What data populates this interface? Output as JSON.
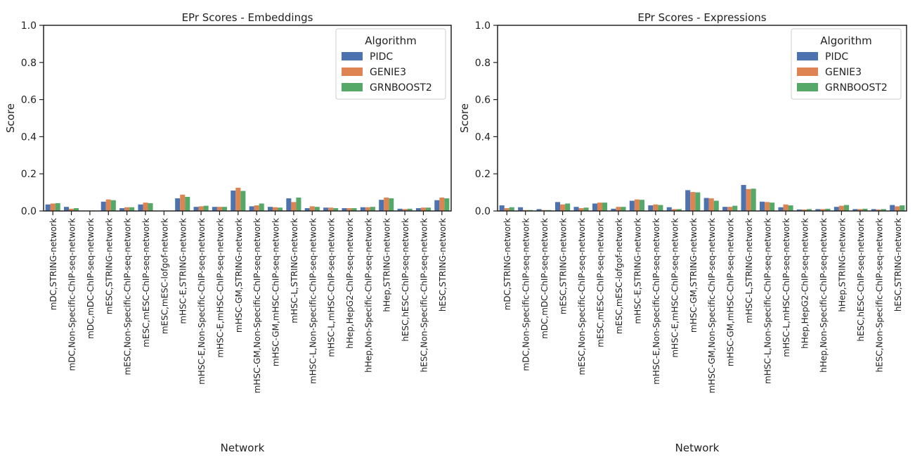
{
  "colors": {
    "PIDC": "#4C72B0",
    "GENIE3": "#DD8452",
    "GRNBOOST2": "#55A868"
  },
  "chart_data": [
    {
      "type": "bar",
      "title": "EPr Scores - Embeddings",
      "xlabel": "Network",
      "ylabel": "Score",
      "ylim": [
        0,
        1.0
      ],
      "yticks": [
        "0.0",
        "0.2",
        "0.4",
        "0.6",
        "0.8",
        "1.0"
      ],
      "legend": {
        "title": "Algorithm",
        "position": "top-right"
      },
      "grid": false,
      "categories": [
        "mDC,STRING-network",
        "mDC,Non-Specific-ChIP-seq-network",
        "mDC,mDC-ChIP-seq-network",
        "mESC,STRING-network",
        "mESC,Non-Specific-ChIP-seq-network",
        "mESC,mESC-ChIP-seq-network",
        "mESC,mESC-lofgof-network",
        "mHSC-E,STRING-network",
        "mHSC-E,Non-Specific-ChIP-seq-network",
        "mHSC-E,mHSC-ChIP-seq-network",
        "mHSC-GM,STRING-network",
        "mHSC-GM,Non-Specific-ChIP-seq-network",
        "mHSC-GM,mHSC-ChIP-seq-network",
        "mHSC-L,STRING-network",
        "mHSC-L,Non-Specific-ChIP-seq-network",
        "mHSC-L,mHSC-ChIP-seq-network",
        "hHep,HepG2-ChIP-seq-network",
        "hHep,Non-Specific-ChIP-seq-network",
        "hHep,STRING-network",
        "hESC,hESC-ChIP-seq-network",
        "hESC,Non-Specific-ChIP-seq-network",
        "hESC,STRING-network"
      ],
      "series": [
        {
          "name": "PIDC",
          "values": [
            0.035,
            0.022,
            0.0,
            0.05,
            0.015,
            0.035,
            0.0,
            0.068,
            0.022,
            0.022,
            0.11,
            0.025,
            0.022,
            0.068,
            0.015,
            0.018,
            0.015,
            0.02,
            0.06,
            0.012,
            0.015,
            0.058
          ]
        },
        {
          "name": "GENIE3",
          "values": [
            0.04,
            0.012,
            0.0,
            0.062,
            0.02,
            0.045,
            0.0,
            0.088,
            0.025,
            0.022,
            0.125,
            0.03,
            0.02,
            0.048,
            0.025,
            0.018,
            0.015,
            0.02,
            0.072,
            0.01,
            0.018,
            0.072
          ]
        },
        {
          "name": "GRNBOOST2",
          "values": [
            0.042,
            0.015,
            0.0,
            0.058,
            0.02,
            0.042,
            0.0,
            0.076,
            0.028,
            0.022,
            0.108,
            0.04,
            0.018,
            0.072,
            0.022,
            0.015,
            0.015,
            0.022,
            0.068,
            0.012,
            0.018,
            0.068
          ]
        }
      ]
    },
    {
      "type": "bar",
      "title": "EPr Scores - Expressions",
      "xlabel": "Network",
      "ylabel": "Score",
      "ylim": [
        0,
        1.0
      ],
      "yticks": [
        "0.0",
        "0.2",
        "0.4",
        "0.6",
        "0.8",
        "1.0"
      ],
      "legend": {
        "title": "Algorithm",
        "position": "top-right"
      },
      "grid": false,
      "categories": [
        "mDC,STRING-network",
        "mDC,Non-Specific-ChIP-seq-network",
        "mDC,mDC-ChIP-seq-network",
        "mESC,STRING-network",
        "mESC,Non-Specific-ChIP-seq-network",
        "mESC,mESC-ChIP-seq-network",
        "mESC,mESC-lofgof-network",
        "mHSC-E,STRING-network",
        "mHSC-E,Non-Specific-ChIP-seq-network",
        "mHSC-E,mHSC-ChIP-seq-network",
        "mHSC-GM,STRING-network",
        "mHSC-GM,Non-Specific-ChIP-seq-network",
        "mHSC-GM,mHSC-ChIP-seq-network",
        "mHSC-L,STRING-network",
        "mHSC-L,Non-Specific-ChIP-seq-network",
        "mHSC-L,mHSC-ChIP-seq-network",
        "hHep,HepG2-ChIP-seq-network",
        "hHep,Non-Specific-ChIP-seq-network",
        "hHep,STRING-network",
        "hESC,hESC-ChIP-seq-network",
        "hESC,Non-Specific-ChIP-seq-network",
        "hESC,STRING-network"
      ],
      "series": [
        {
          "name": "PIDC",
          "values": [
            0.03,
            0.02,
            0.01,
            0.048,
            0.022,
            0.04,
            0.012,
            0.055,
            0.03,
            0.02,
            0.112,
            0.07,
            0.022,
            0.14,
            0.05,
            0.02,
            0.008,
            0.01,
            0.022,
            0.01,
            0.01,
            0.032
          ]
        },
        {
          "name": "GENIE3",
          "values": [
            0.015,
            0.005,
            0.005,
            0.035,
            0.015,
            0.045,
            0.022,
            0.062,
            0.035,
            0.01,
            0.102,
            0.068,
            0.022,
            0.118,
            0.048,
            0.035,
            0.008,
            0.01,
            0.028,
            0.01,
            0.008,
            0.025
          ]
        },
        {
          "name": "GRNBOOST2",
          "values": [
            0.02,
            0.005,
            0.005,
            0.04,
            0.018,
            0.045,
            0.022,
            0.06,
            0.032,
            0.01,
            0.1,
            0.055,
            0.028,
            0.12,
            0.045,
            0.03,
            0.01,
            0.012,
            0.032,
            0.012,
            0.01,
            0.03
          ]
        }
      ]
    }
  ]
}
